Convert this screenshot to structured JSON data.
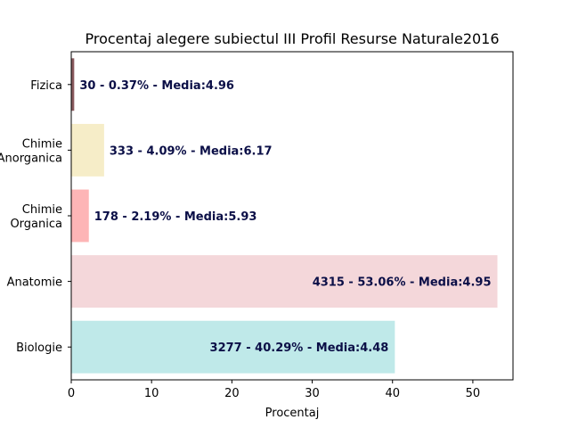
{
  "chart_data": {
    "type": "bar",
    "orientation": "horizontal",
    "title": "Procentaj alegere subiectul III Profil Resurse Naturale2016",
    "xlabel": "Procentaj",
    "ylabel": "",
    "xlim": [
      0,
      55
    ],
    "xticks": [
      0,
      10,
      20,
      30,
      40,
      50
    ],
    "grid": false,
    "categories": [
      [
        "Biologie"
      ],
      [
        "Anatomie"
      ],
      [
        "Chimie",
        "Organica"
      ],
      [
        "Chimie",
        "Anorganica"
      ],
      [
        "Fizica"
      ]
    ],
    "values": [
      40.29,
      53.06,
      2.19,
      4.09,
      0.37
    ],
    "data_labels": [
      "3277 - 40.29% - Media:4.48",
      "4315 - 53.06% - Media:4.95",
      "178 - 2.19% - Media:5.93",
      "333 - 4.09% - Media:6.17",
      "30 - 0.37% - Media:4.96"
    ],
    "label_inside": [
      true,
      true,
      false,
      false,
      false
    ],
    "colors": [
      "#bfe9e9",
      "#f4d7da",
      "#fdb5b6",
      "#f6edc8",
      "#8a5a5e"
    ],
    "label_color": "#0b0f47"
  }
}
